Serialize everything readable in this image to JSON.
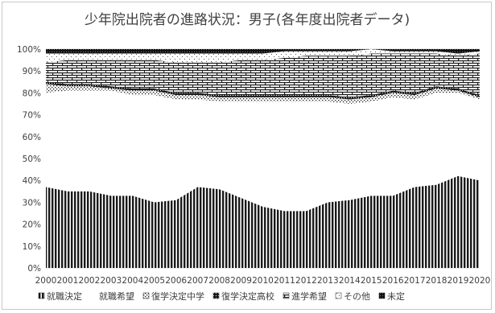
{
  "chart_data": {
    "type": "area",
    "stacked": true,
    "title": "少年院出院者の進路状況：男子(各年度出院者データ)",
    "xlabel": "",
    "ylabel": "",
    "x": [
      "2000",
      "2001",
      "2002",
      "2003",
      "2004",
      "2005",
      "2006",
      "2007",
      "2008",
      "2009",
      "2010",
      "2011",
      "2012",
      "2013",
      "2014",
      "2015",
      "2016",
      "2017",
      "2018",
      "2019",
      "2020"
    ],
    "ylim": [
      0,
      100
    ],
    "y_ticks": [
      "0%",
      "10%",
      "20%",
      "30%",
      "40%",
      "50%",
      "60%",
      "70%",
      "80%",
      "90%",
      "100%"
    ],
    "grid": true,
    "legend_position": "bottom",
    "series": [
      {
        "name": "就職決定",
        "values": [
          37,
          35,
          35,
          33,
          33,
          30,
          31,
          37,
          36,
          32,
          28,
          26,
          26,
          30,
          31,
          33,
          33,
          37,
          38,
          42,
          40
        ]
      },
      {
        "name": "就職希望",
        "values": [
          43,
          46,
          46,
          48,
          46,
          49,
          46,
          40,
          40,
          44,
          48,
          50,
          50,
          46,
          44,
          43,
          45,
          40,
          42,
          38,
          37
        ]
      },
      {
        "name": "復学決定中学",
        "values": [
          4,
          2,
          2,
          1,
          2,
          2,
          2,
          2,
          2,
          2,
          2,
          2,
          2,
          2,
          2,
          2,
          2,
          2,
          2,
          1,
          1
        ]
      },
      {
        "name": "復学決定高校",
        "values": [
          1,
          1,
          1,
          1,
          1,
          1,
          1,
          1,
          1,
          1,
          1,
          1,
          1,
          1,
          1,
          1,
          1,
          1,
          1,
          1,
          1
        ]
      },
      {
        "name": "進学希望",
        "values": [
          9,
          11,
          11,
          12,
          13,
          13,
          14,
          14,
          15,
          16,
          16,
          17,
          18,
          18,
          19,
          19,
          17,
          18,
          15,
          15,
          19
        ]
      },
      {
        "name": "その他",
        "values": [
          4,
          3,
          3,
          3,
          3,
          3,
          4,
          4,
          4,
          3,
          3,
          3,
          2,
          2,
          2,
          2,
          1,
          1,
          1,
          1,
          1
        ]
      },
      {
        "name": "未定",
        "values": [
          2,
          2,
          2,
          2,
          2,
          2,
          2,
          2,
          2,
          2,
          2,
          1,
          1,
          1,
          1,
          0,
          1,
          1,
          1,
          2,
          1
        ]
      }
    ],
    "colors": {
      "text": "#404040",
      "grid": "#d9d9d9",
      "ink": "#1a1a1a"
    }
  }
}
